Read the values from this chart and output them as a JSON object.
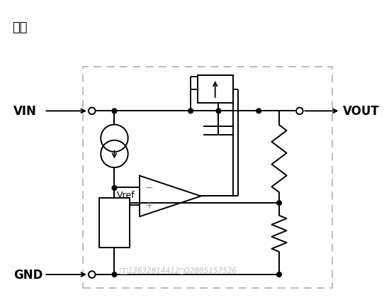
{
  "title": "框图",
  "watermark": "许鑫13632814412，Q2885157526",
  "vin_label": "VIN",
  "vout_label": "VOUT",
  "gnd_label": "GND",
  "vref_label": "Vref",
  "line_color": "#000000",
  "dash_border_color": "#aaaaaa",
  "watermark_color": "#bbbbbb",
  "background": "#ffffff"
}
